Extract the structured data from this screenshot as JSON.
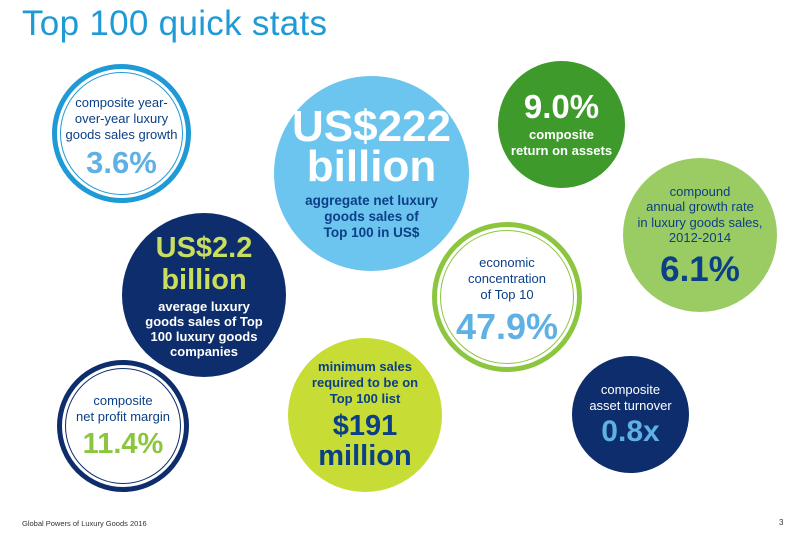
{
  "title": "Top 100 quick stats",
  "stats": {
    "growth": {
      "label": [
        "composite year-",
        "over-year luxury",
        "goods sales growth"
      ],
      "value": "3.6%"
    },
    "aggregate": {
      "value": [
        "US$222",
        "billion"
      ],
      "label": [
        "aggregate net luxury",
        "goods sales of",
        "Top 100 in US$"
      ]
    },
    "roa": {
      "value": "9.0%",
      "label": [
        "composite",
        "return on assets"
      ]
    },
    "cagr": {
      "label": [
        "compound",
        "annual growth rate",
        "in luxury goods sales,",
        "2012-2014"
      ],
      "value": "6.1%"
    },
    "average": {
      "value": [
        "US$2.2",
        "billion"
      ],
      "label": [
        "average luxury",
        "goods sales of Top",
        "100 luxury goods",
        "companies"
      ]
    },
    "concentration": {
      "label": [
        "economic",
        "concentration",
        "of Top 10"
      ],
      "value": "47.9%"
    },
    "margin": {
      "label": [
        "composite",
        "net profit margin"
      ],
      "value": "11.4%"
    },
    "minimum": {
      "label": [
        "minimum sales",
        "required to be on",
        "Top 100 list"
      ],
      "value": [
        "$191",
        "million"
      ]
    },
    "turnover": {
      "label": [
        "composite",
        "asset turnover"
      ],
      "value": "0.8x"
    }
  },
  "colors": {
    "title_blue": "#1f9ad6",
    "navy": "#0d2d6c",
    "light_blue": "#6cc5ee",
    "green": "#3d9a2b",
    "light_green": "#9bcc63",
    "lime": "#c7dc35"
  },
  "footer": {
    "source": "Global Powers of Luxury Goods 2016",
    "page": "3"
  }
}
